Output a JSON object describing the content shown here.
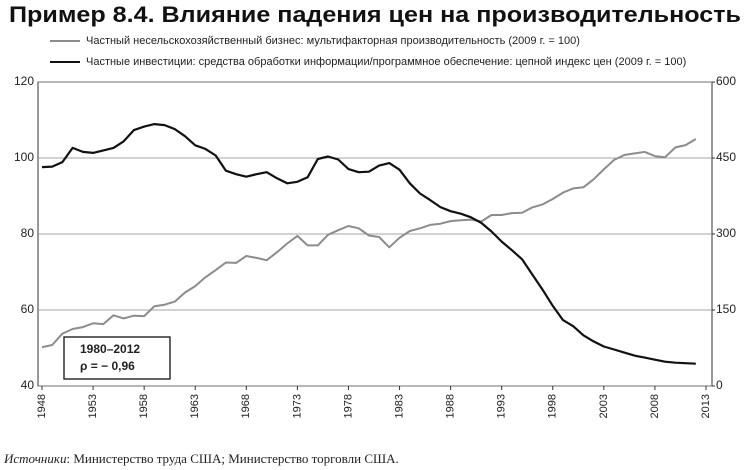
{
  "chart_data": {
    "type": "line",
    "title": "Пример 8.4. Влияние падения цен на производительность",
    "x": [
      1948,
      1949,
      1950,
      1951,
      1952,
      1953,
      1954,
      1955,
      1956,
      1957,
      1958,
      1959,
      1960,
      1961,
      1962,
      1963,
      1964,
      1965,
      1966,
      1967,
      1968,
      1969,
      1970,
      1971,
      1972,
      1973,
      1974,
      1975,
      1976,
      1977,
      1978,
      1979,
      1980,
      1981,
      1982,
      1983,
      1984,
      1985,
      1986,
      1987,
      1988,
      1989,
      1990,
      1991,
      1992,
      1993,
      1994,
      1995,
      1996,
      1997,
      1998,
      1999,
      2000,
      2001,
      2002,
      2003,
      2004,
      2005,
      2006,
      2007,
      2008,
      2009,
      2010,
      2011,
      2012
    ],
    "series": [
      {
        "name": "Частный несельскохозяйственный бизнес: мультифакторная производительность (2009 г. = 100)",
        "color": "#8c8c8c",
        "axis": "y",
        "values": [
          50.2,
          50.8,
          53.8,
          55,
          55.5,
          56.5,
          56.3,
          58.6,
          57.8,
          58.5,
          58.4,
          61,
          61.4,
          62.2,
          64.6,
          66.3,
          68.6,
          70.5,
          72.5,
          72.4,
          74.2,
          73.7,
          73.1,
          75.2,
          77.5,
          79.5,
          77,
          77,
          79.8,
          81,
          82.1,
          81.5,
          79.6,
          79.2,
          76.5,
          79,
          80.8,
          81.5,
          82.4,
          82.7,
          83.4,
          83.6,
          83.8,
          83.3,
          85,
          85,
          85.5,
          85.6,
          87,
          87.8,
          89.2,
          90.9,
          92,
          92.3,
          94.4,
          97,
          99.5,
          100.8,
          101.2,
          101.6,
          100.5,
          100.2,
          102.8,
          103.4,
          105
        ]
      },
      {
        "name": "Частные инвестиции: средства обработки информации/программное обеспечение: цепной индекс цен (2009 г. = 100)",
        "color": "#111111",
        "axis": "y2",
        "values": [
          432,
          433,
          442,
          470,
          462,
          460,
          465,
          470,
          483,
          505,
          512,
          517,
          515,
          507,
          493,
          475,
          468,
          455,
          425,
          418,
          413,
          418,
          422,
          410,
          400,
          403,
          412,
          448,
          453,
          447,
          428,
          422,
          423,
          435,
          440,
          427,
          400,
          380,
          367,
          353,
          345,
          340,
          333,
          322,
          305,
          285,
          268,
          250,
          220,
          190,
          158,
          130,
          118,
          100,
          88,
          78,
          72,
          66,
          60,
          56,
          52,
          48,
          46,
          45,
          44
        ]
      }
    ],
    "xlim": [
      1948,
      2013
    ],
    "xticks": [
      1948,
      1953,
      1958,
      1963,
      1968,
      1973,
      1978,
      1983,
      1988,
      1993,
      1998,
      2003,
      2008,
      2013
    ],
    "ylim": [
      40,
      120
    ],
    "yticks": [
      40,
      60,
      80,
      100,
      120
    ],
    "y2lim": [
      0,
      600
    ],
    "y2ticks": [
      0,
      150,
      300,
      450,
      600
    ],
    "grid": true,
    "annotation": [
      "1980–2012",
      "ρ = − 0,96"
    ],
    "source_label": "Источники",
    "source_text": ": Министерство труда США; Министерство торговли США."
  }
}
